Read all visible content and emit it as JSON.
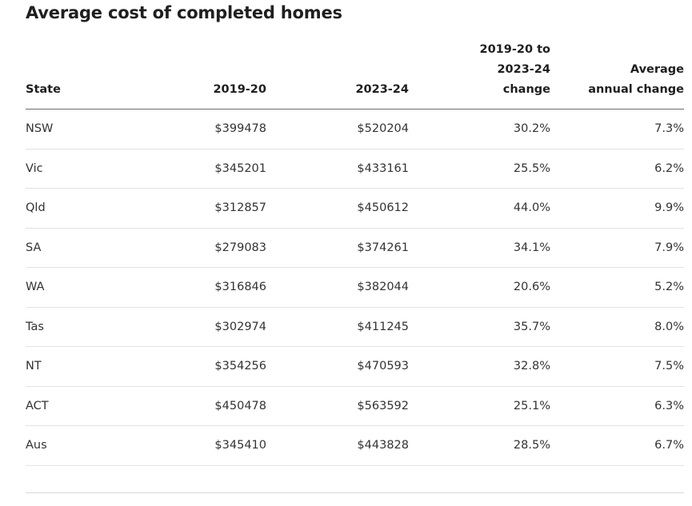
{
  "chart_data": {
    "type": "table",
    "title": "Average cost of completed homes",
    "columns": [
      "State",
      "2019-20",
      "2023-24",
      "2019-20 to\n2023-24\nchange",
      "Average\nannual change"
    ],
    "rows": [
      [
        "NSW",
        "$399478",
        "$520204",
        "30.2%",
        "7.3%"
      ],
      [
        "Vic",
        "$345201",
        "$433161",
        "25.5%",
        "6.2%"
      ],
      [
        "Qld",
        "$312857",
        "$450612",
        "44.0%",
        "9.9%"
      ],
      [
        "SA",
        "$279083",
        "$374261",
        "34.1%",
        "7.9%"
      ],
      [
        "WA",
        "$316846",
        "$382044",
        "20.6%",
        "5.2%"
      ],
      [
        "Tas",
        "$302974",
        "$411245",
        "35.7%",
        "8.0%"
      ],
      [
        "NT",
        "$354256",
        "$470593",
        "32.8%",
        "7.5%"
      ],
      [
        "ACT",
        "$450478",
        "$563592",
        "25.1%",
        "6.3%"
      ],
      [
        "Aus",
        "$345410",
        "$443828",
        "28.5%",
        "6.7%"
      ]
    ]
  }
}
